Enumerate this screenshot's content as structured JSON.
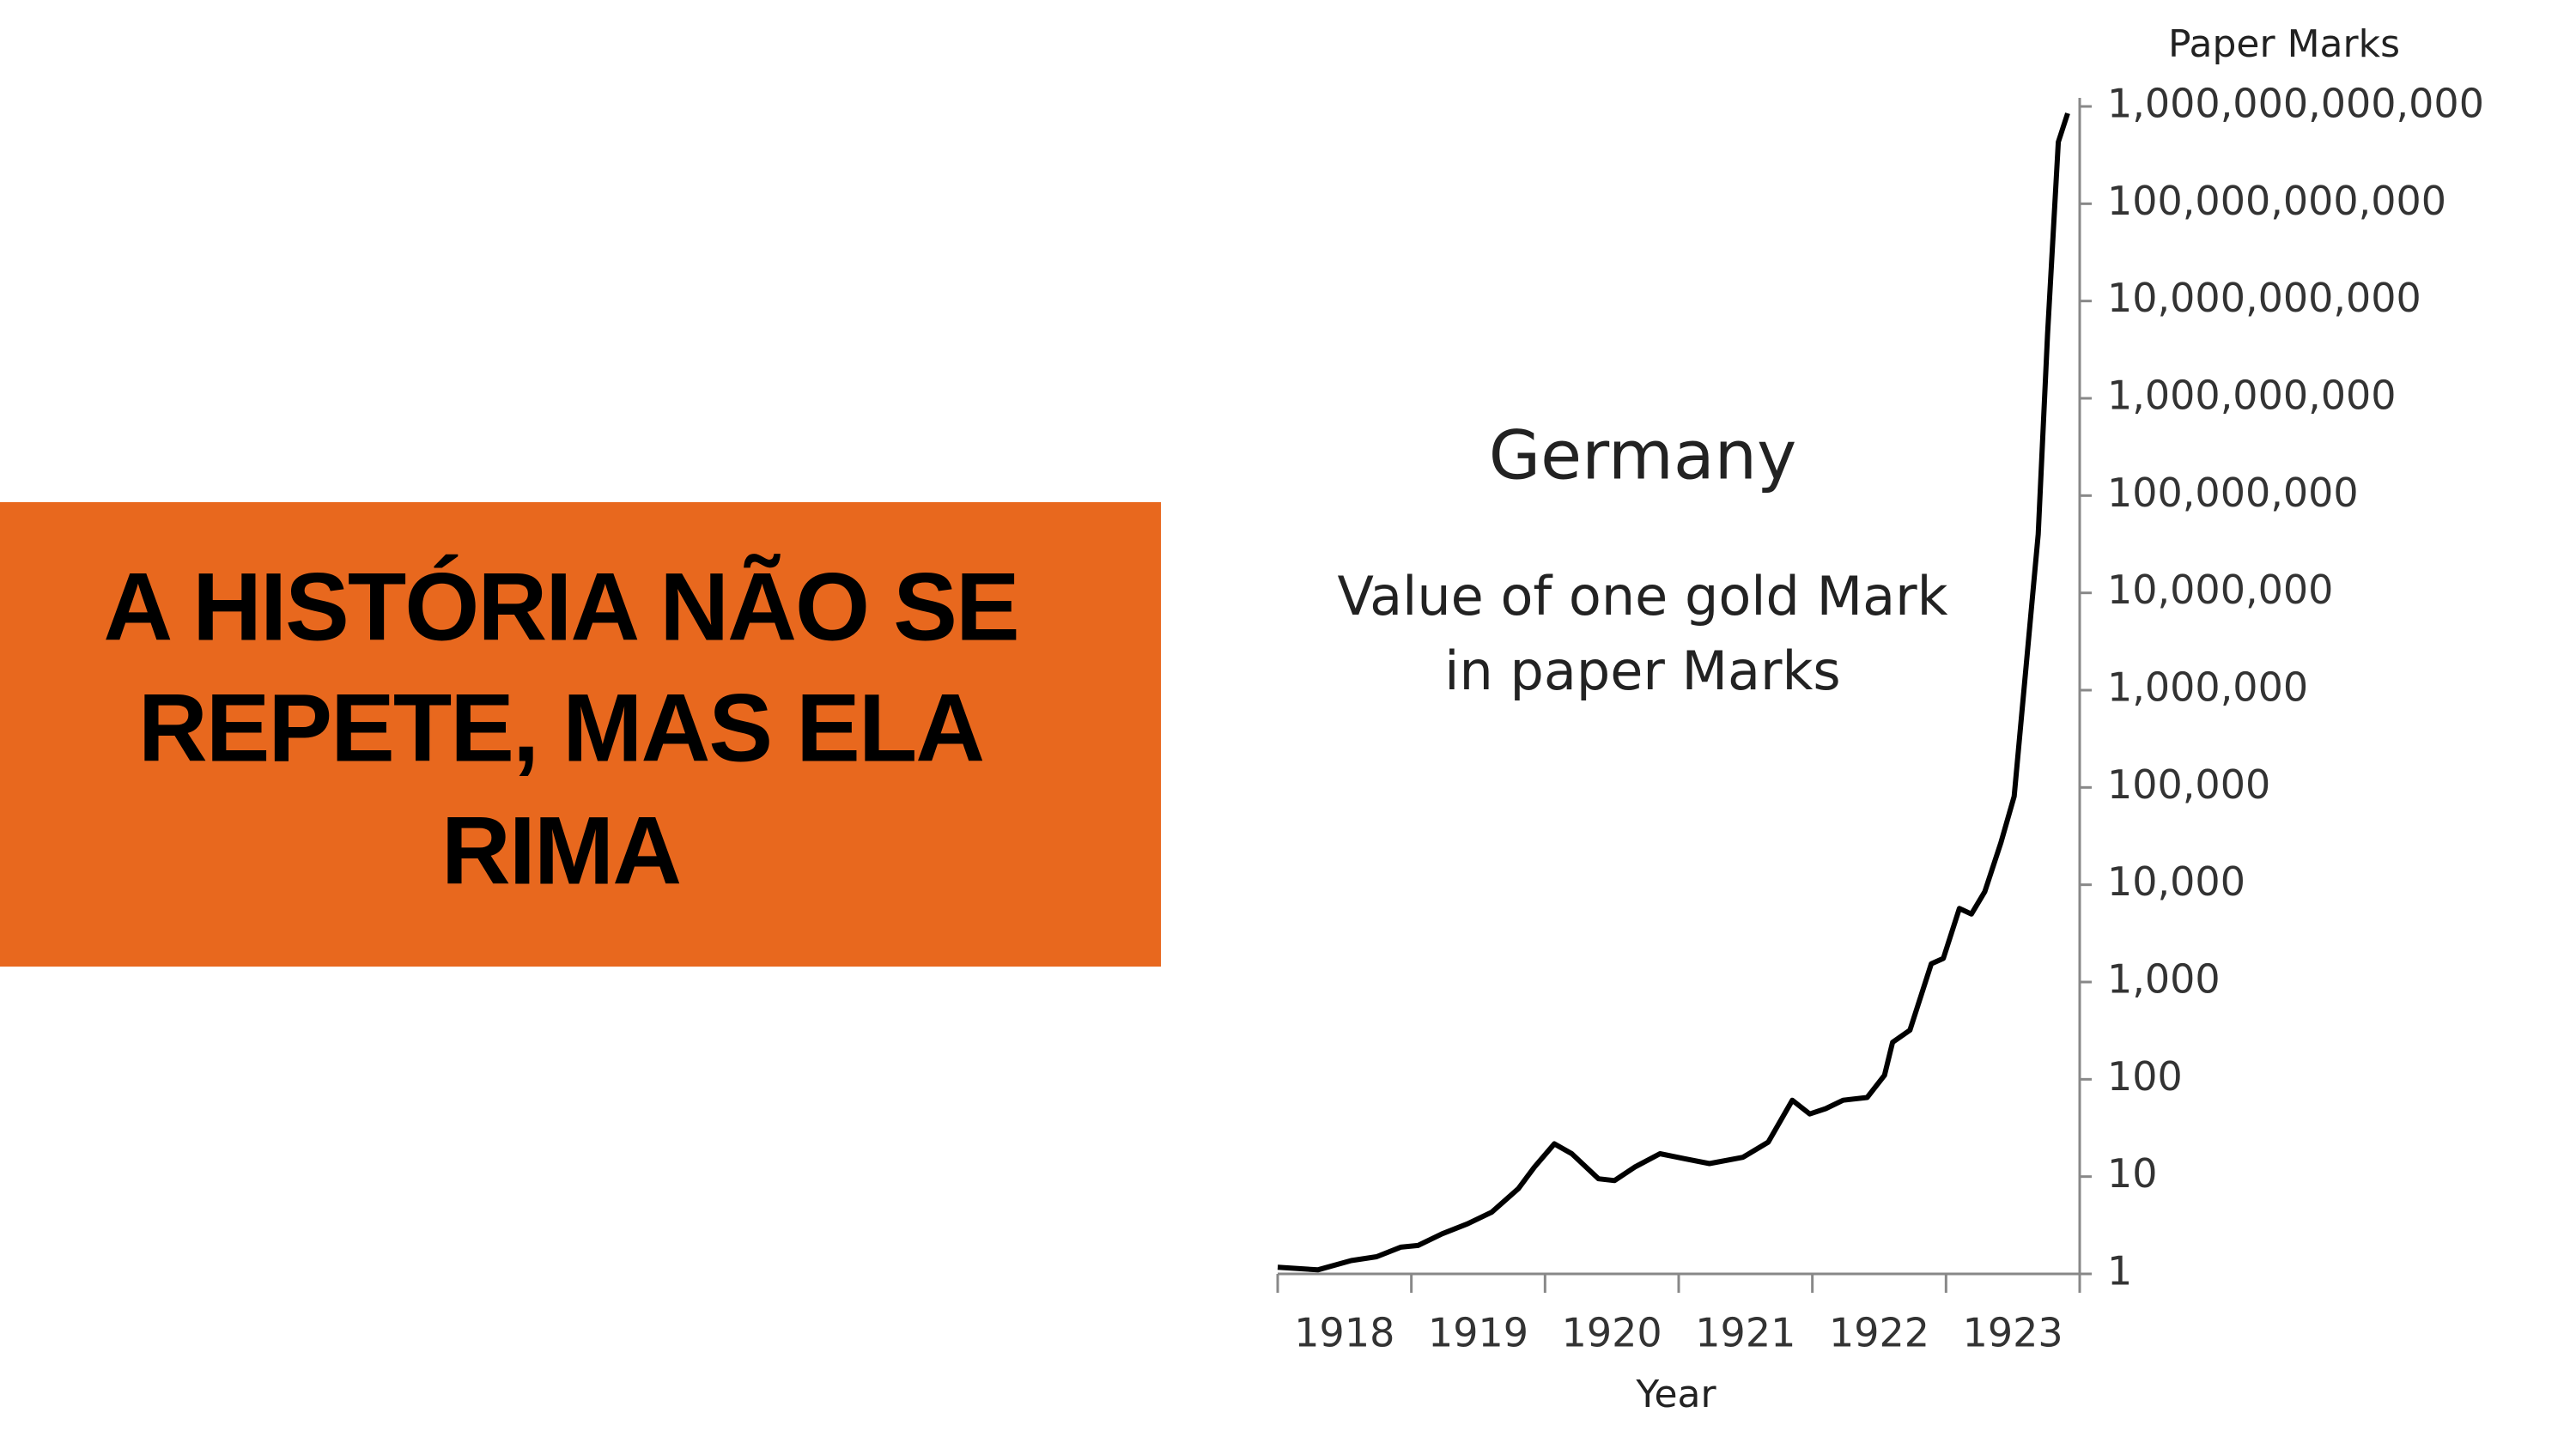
{
  "headline": {
    "lines": [
      "A HISTÓRIA NÃO SE",
      "REPETE, MAS ELA",
      "RIMA"
    ]
  },
  "chart_data": {
    "type": "line",
    "title": "Germany",
    "subtitle": [
      "Value of one gold Mark",
      "in paper Marks"
    ],
    "x_label": "Year",
    "y_label": "Paper Marks",
    "log_scale": true,
    "x": [
      1918.0,
      1918.3,
      1918.55,
      1918.74,
      1918.92,
      1919.05,
      1919.23,
      1919.42,
      1919.6,
      1919.8,
      1919.92,
      1920.07,
      1920.2,
      1920.4,
      1920.52,
      1920.67,
      1920.86,
      1921.04,
      1921.23,
      1921.48,
      1921.67,
      1921.85,
      1921.98,
      1922.1,
      1922.23,
      1922.41,
      1922.54,
      1922.6,
      1922.73,
      1922.89,
      1922.98,
      1923.1,
      1923.19,
      1923.29,
      1923.41,
      1923.51,
      1923.6,
      1923.69,
      1923.76,
      1923.84,
      1923.91
    ],
    "series": [
      {
        "name": "Paper Marks",
        "color": "#000000",
        "values": [
          1.17,
          1.1,
          1.37,
          1.5,
          1.88,
          1.96,
          2.58,
          3.27,
          4.3,
          7.5,
          12.5,
          21.7,
          17.2,
          9.5,
          9.1,
          12.5,
          17.2,
          15.3,
          13.6,
          15.8,
          22.6,
          61,
          44,
          50,
          61,
          65,
          110,
          240,
          320,
          1540,
          1750,
          5700,
          5000,
          8500,
          27000,
          81000,
          1800000,
          40000000,
          4600000000,
          430000000000,
          850000000000
        ]
      }
    ],
    "xlim": [
      1918,
      1924
    ],
    "xticks": [
      1918,
      1919,
      1920,
      1921,
      1922,
      1923
    ],
    "ylim": [
      1,
      1000000000000
    ],
    "yticks": [
      1,
      10,
      100,
      {
        "value": 1000,
        "label": "1,000"
      },
      {
        "value": 10000,
        "label": "10,000"
      },
      {
        "value": 100000,
        "label": "100,000"
      },
      {
        "value": 1000000,
        "label": "1,000,000"
      },
      {
        "value": 10000000,
        "label": "10,000,000"
      },
      {
        "value": 100000000,
        "label": "100,000,000"
      },
      {
        "value": 1000000000,
        "label": "1,000,000,000"
      },
      {
        "value": 10000000000,
        "label": "10,000,000,000"
      },
      {
        "value": 100000000000,
        "label": "100,000,000,000"
      },
      {
        "value": 1000000000000,
        "label": "1,000,000,000,000"
      }
    ]
  }
}
